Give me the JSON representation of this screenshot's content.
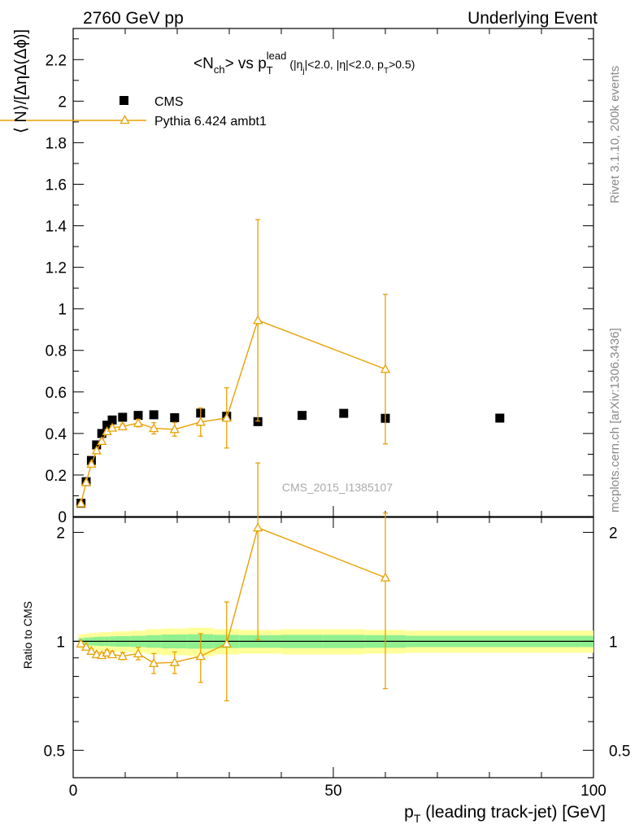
{
  "header": {
    "left": "2760 GeV pp",
    "right": "Underlying Event"
  },
  "side_labels": {
    "rivet": "Rivet 3.1.10,  200k events",
    "mcplots": "mcplots.cern.ch [arXiv:1306.3436]"
  },
  "watermark": "CMS_2015_I1385107",
  "title": {
    "main": "<N",
    "main_sub": "ch",
    "main_rest": "> vs p",
    "pt_sub": "T",
    "pt_sup": "lead",
    "cond_open": "(|η",
    "cond_j": "j",
    "cond_mid": "|<2.0, |η|<2.0, p",
    "cond_T": "T",
    "cond_end": ">0.5)"
  },
  "colors": {
    "data": "#000000",
    "mc": "#e8a000",
    "band_inner": "#90f090",
    "band_outer": "#ffff99"
  },
  "chart_data": [
    {
      "type": "scatter",
      "panel": "main",
      "ylabel": "⟨ N⟩/[ΔηΔ(Δϕ)]",
      "xlim": [
        0,
        100
      ],
      "ylim": [
        0,
        2.35
      ],
      "yticks": [
        "0",
        "0.2",
        "0.4",
        "0.6",
        "0.8",
        "1",
        "1.2",
        "1.4",
        "1.6",
        "1.8",
        "2",
        "2.2"
      ],
      "legend_position": "top-left",
      "series": [
        {
          "name": "CMS",
          "marker": "square",
          "x": [
            1.5,
            2.5,
            3.5,
            4.5,
            5.5,
            6.5,
            7.5,
            9.5,
            12.5,
            15.5,
            19.5,
            24.5,
            29.5,
            35.5,
            44.0,
            52.0,
            60.0,
            82.0
          ],
          "y": [
            0.064,
            0.168,
            0.27,
            0.345,
            0.4,
            0.44,
            0.465,
            0.478,
            0.487,
            0.49,
            0.476,
            0.498,
            0.483,
            0.457,
            0.487,
            0.497,
            0.473,
            0.474
          ]
        },
        {
          "name": "Pythia 6.424 ambt1",
          "marker": "open-triangle",
          "x": [
            1.5,
            2.5,
            3.5,
            4.5,
            5.5,
            6.5,
            7.5,
            9.5,
            12.5,
            15.5,
            19.5,
            24.5,
            29.5,
            35.5,
            60.0
          ],
          "y": [
            0.063,
            0.165,
            0.253,
            0.318,
            0.363,
            0.41,
            0.427,
            0.434,
            0.45,
            0.425,
            0.42,
            0.455,
            0.475,
            0.945,
            0.71
          ],
          "yerr": [
            0.004,
            0.005,
            0.006,
            0.007,
            0.008,
            0.009,
            0.01,
            0.012,
            0.018,
            0.027,
            0.033,
            0.068,
            0.145,
            0.485,
            0.36
          ]
        }
      ]
    },
    {
      "type": "line",
      "panel": "ratio",
      "ylabel": "Ratio to CMS",
      "xlabel": "p_T (leading track-jet) [GeV]",
      "xlim": [
        0,
        100
      ],
      "ylim_log": [
        0.42,
        2.2
      ],
      "yticks": [
        "0.5",
        "1",
        "2"
      ],
      "xticks": [
        "0",
        "50",
        "100"
      ],
      "band": {
        "edges": [
          1,
          2,
          3,
          4,
          5,
          6,
          7,
          8,
          11,
          14,
          17,
          22,
          27,
          32,
          40,
          48,
          56,
          64,
          100
        ],
        "inner": [
          0.02,
          0.024,
          0.026,
          0.028,
          0.03,
          0.03,
          0.032,
          0.034,
          0.036,
          0.04,
          0.044,
          0.046,
          0.042,
          0.04,
          0.042,
          0.042,
          0.04,
          0.036
        ],
        "outer": [
          0.045,
          0.05,
          0.055,
          0.055,
          0.06,
          0.06,
          0.062,
          0.065,
          0.07,
          0.08,
          0.085,
          0.09,
          0.08,
          0.075,
          0.08,
          0.08,
          0.075,
          0.07
        ]
      },
      "series": [
        {
          "name": "Pythia 6.424 ambt1",
          "x": [
            1.5,
            2.5,
            3.5,
            4.5,
            5.5,
            6.5,
            7.5,
            9.5,
            12.5,
            15.5,
            19.5,
            24.5,
            29.5,
            35.5,
            60.0
          ],
          "y": [
            0.985,
            0.965,
            0.94,
            0.92,
            0.915,
            0.93,
            0.92,
            0.91,
            0.925,
            0.87,
            0.875,
            0.91,
            0.985,
            2.06,
            1.5
          ],
          "yerr": [
            0.01,
            0.01,
            0.012,
            0.014,
            0.015,
            0.015,
            0.018,
            0.02,
            0.036,
            0.055,
            0.06,
            0.14,
            0.3,
            1.05,
            0.76
          ]
        }
      ]
    }
  ]
}
